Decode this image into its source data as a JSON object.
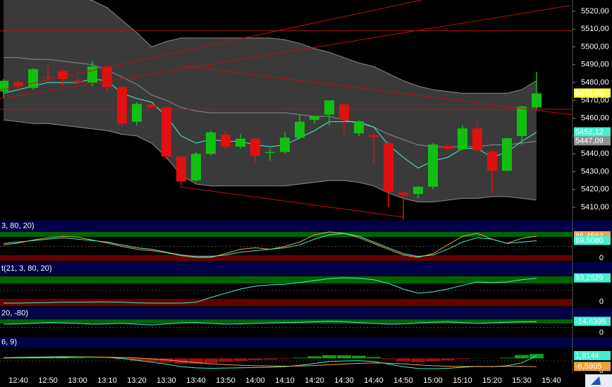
{
  "chart_data": [
    {
      "type": "candlestick",
      "xtick_labels": [
        "12:40",
        "12:50",
        "13:00",
        "13:10",
        "13:20",
        "13:30",
        "13:40",
        "13:50",
        "14:00",
        "14:10",
        "14:20",
        "14:30",
        "14:40",
        "14:50",
        "15:00",
        "15:10",
        "15:20",
        "15:30",
        "15:40"
      ],
      "open": [
        5475,
        5480,
        5477,
        5483,
        5486.5,
        5481,
        5480,
        5489,
        5477.5,
        5458,
        5467.5,
        5466,
        5438.5,
        5425,
        5440,
        5450.75,
        5444,
        5448.5,
        5440.5,
        5441,
        5449,
        5459,
        5462,
        5467.75,
        5451.5,
        5450.5,
        5446,
        5418.25,
        5417.5,
        5421.5,
        5444.5,
        5442.5,
        5454.25,
        5441.25,
        5430.5,
        5450,
        5466
      ],
      "high": [
        5482,
        5481,
        5488,
        5490,
        5488,
        5483,
        5492,
        5490,
        5478,
        5469,
        5468,
        5467,
        5439,
        5441,
        5453,
        5453,
        5451,
        5449,
        5443,
        5452,
        5462,
        5461,
        5470,
        5468,
        5459,
        5452,
        5447,
        5419,
        5422,
        5446,
        5446,
        5456,
        5458,
        5442,
        5449,
        5467,
        5486
      ],
      "low": [
        5471,
        5476,
        5476,
        5481,
        5478,
        5479,
        5478,
        5475,
        5455,
        5456,
        5466,
        5437,
        5422,
        5424,
        5439,
        5443,
        5443,
        5435,
        5436,
        5440,
        5448,
        5457,
        5456,
        5451,
        5450,
        5434,
        5410,
        5403,
        5415,
        5420,
        5442,
        5442,
        5441,
        5418,
        5430,
        5445,
        5465
      ],
      "close": [
        5481,
        5478,
        5487.5,
        5482.5,
        5482,
        5480,
        5489,
        5477.5,
        5457,
        5468,
        5466.25,
        5438.5,
        5424.5,
        5440,
        5452,
        5444,
        5448.5,
        5439,
        5441,
        5449,
        5458,
        5461,
        5470,
        5459,
        5458.25,
        5449.5,
        5418.75,
        5416.75,
        5421.5,
        5445.25,
        5442.75,
        5454.25,
        5442,
        5430.5,
        5448.75,
        5466.5,
        5473.9
      ],
      "up_color": "#10c010",
      "down_color": "#e01010",
      "bands": {
        "color": "#3a3a3a",
        "edge_color": "#8a8a8a",
        "upper": [
          5530,
          5530,
          5530,
          5530,
          5529,
          5528,
          5526,
          5522,
          5515,
          5508,
          5500,
          5503,
          5505,
          5505,
          5505,
          5505,
          5505,
          5505,
          5505,
          5504,
          5502,
          5499,
          5497,
          5494,
          5491,
          5489,
          5485,
          5481,
          5478,
          5476,
          5475,
          5474,
          5474,
          5474,
          5474,
          5476,
          5481
        ],
        "middle": [
          5494,
          5494,
          5493,
          5493,
          5492,
          5491,
          5490,
          5487,
          5483,
          5479,
          5473,
          5470,
          5466,
          5464,
          5463,
          5463,
          5463,
          5463,
          5463,
          5463,
          5462,
          5461,
          5461,
          5459,
          5457,
          5455,
          5451,
          5448,
          5445,
          5444,
          5444,
          5444,
          5444,
          5445,
          5445,
          5446,
          5447.09
        ],
        "lower": [
          5459,
          5458,
          5457,
          5457,
          5456,
          5455,
          5454,
          5453,
          5451,
          5450,
          5446,
          5438,
          5428,
          5423,
          5422,
          5422,
          5422,
          5422,
          5422,
          5422,
          5423,
          5424,
          5425,
          5425,
          5424,
          5422,
          5418,
          5415,
          5413,
          5413,
          5414,
          5415,
          5415,
          5416,
          5416,
          5415,
          5414
        ]
      },
      "ema": {
        "color": "#40f0d0",
        "values": [
          5474,
          5476,
          5478,
          5480,
          5480,
          5480,
          5482,
          5481,
          5474,
          5471,
          5469,
          5461,
          5450,
          5446,
          5448,
          5447,
          5447,
          5445,
          5444,
          5445,
          5449,
          5453,
          5458,
          5458,
          5458,
          5455,
          5445,
          5438,
          5432,
          5436,
          5438,
          5443,
          5443,
          5438,
          5441,
          5447,
          5452.12
        ]
      },
      "hlines": [
        5509,
        5465
      ],
      "hline_color": "#c01010",
      "ylim": [
        5402.9,
        5526.3
      ],
      "yticks": [
        {
          "value": 5410,
          "label": "5410,00"
        },
        {
          "value": 5420,
          "label": "5420,00"
        },
        {
          "value": 5430,
          "label": "5430,00"
        },
        {
          "value": 5440,
          "label": "5440,00"
        },
        {
          "value": 5450,
          "label": "5450,00"
        },
        {
          "value": 5460,
          "label": "5460,00"
        },
        {
          "value": 5470,
          "label": "5470,00"
        },
        {
          "value": 5480,
          "label": "5480,00"
        },
        {
          "value": 5490,
          "label": "5490,00"
        },
        {
          "value": 5500,
          "label": "5500,00"
        },
        {
          "value": 5510,
          "label": "5510,00"
        },
        {
          "value": 5520,
          "label": "5520,00"
        }
      ],
      "value_labels": [
        {
          "value": 5473.9,
          "label": "5473,90",
          "color": "#ffff40",
          "text_color": "#d00000"
        },
        {
          "value": 5452.12,
          "label": "5452,12",
          "color": "#40f0d0",
          "text_color": "#000000"
        },
        {
          "value": 5447.09,
          "label": "5447,09",
          "color": "#909090",
          "text_color": "#000000"
        }
      ]
    },
    {
      "type": "line",
      "title": "3, 80, 20)",
      "ylim": [
        0,
        100
      ],
      "yticks": [
        0
      ],
      "series": [
        {
          "color": "#f0a040",
          "values": [
            55,
            62,
            72,
            80,
            85,
            82,
            72,
            62,
            50,
            40,
            35,
            28,
            18,
            12,
            12,
            25,
            40,
            45,
            40,
            50,
            65,
            90,
            100,
            95,
            80,
            60,
            40,
            20,
            12,
            25,
            55,
            85,
            95,
            75,
            60,
            78,
            85.4563
          ]
        },
        {
          "color": "#40f0d0",
          "values": [
            60,
            65,
            70,
            75,
            80,
            75,
            70,
            65,
            55,
            45,
            40,
            30,
            20,
            15,
            15,
            20,
            30,
            35,
            40,
            45,
            55,
            75,
            90,
            95,
            85,
            65,
            45,
            25,
            15,
            20,
            40,
            65,
            80,
            75,
            60,
            65,
            69.508
          ]
        }
      ],
      "value_labels": [
        {
          "value": 85.4563,
          "label": "85,4563",
          "color": "#f0a040",
          "text_color": "#000000"
        },
        {
          "value": 69.508,
          "label": "69,5080",
          "color": "#40f0d0",
          "text_color": "#000000"
        }
      ]
    },
    {
      "type": "line",
      "title": "t(21, 3, 80, 20)",
      "ylim": [
        0,
        100
      ],
      "yticks": [
        0
      ],
      "series": [
        {
          "color": "#40f0d0",
          "values": [
            5,
            5,
            6,
            7,
            8,
            8,
            9,
            9,
            8,
            6,
            5,
            5,
            5,
            8,
            25,
            40,
            55,
            65,
            70,
            72,
            78,
            85,
            92,
            95,
            93,
            88,
            75,
            55,
            40,
            45,
            55,
            68,
            80,
            78,
            80,
            88,
            93.2529
          ]
        }
      ],
      "value_labels": [
        {
          "value": 93.2529,
          "label": "93,2529",
          "color": "#40f0d0",
          "text_color": "#000000"
        }
      ]
    },
    {
      "type": "line",
      "title": "20, -80)",
      "ylim": [
        -100,
        0
      ],
      "yticks": [
        0
      ],
      "series": [
        {
          "color": "#40f0d0",
          "values": [
            -30,
            -28,
            -25,
            -20,
            -22,
            -25,
            -30,
            -28,
            -25,
            -30,
            -35,
            -28,
            -22,
            -20,
            -25,
            -30,
            -28,
            -25,
            -22,
            -20,
            -18,
            -15,
            -12,
            -15,
            -20,
            -25,
            -30,
            -28,
            -22,
            -18,
            -15,
            -20,
            -25,
            -22,
            -18,
            -15,
            -14.6395
          ]
        }
      ],
      "value_labels": [
        {
          "value": -14.6395,
          "label": "-14,6395",
          "color": "#40f0d0",
          "text_color": "#000000"
        }
      ]
    },
    {
      "type": "macd",
      "title": "6, 9)",
      "ylim": [
        -12,
        8
      ],
      "yticks": [
        0
      ],
      "histogram": {
        "up_color": "#10a010",
        "down_color": "#a01010",
        "values": [
          0.2,
          0.4,
          0.5,
          0.5,
          0.5,
          0.3,
          0.1,
          -0.1,
          -0.7,
          -1.8,
          -2.6,
          -3.3,
          -4.2,
          -4.2,
          -3.6,
          -2.7,
          -2,
          -1.4,
          -1,
          -0.4,
          0.5,
          1.6,
          2.5,
          2.4,
          2.1,
          1.1,
          -0.7,
          -2.2,
          -2.9,
          -2.4,
          -1.6,
          -0.6,
          0.1,
          -0.1,
          0.5,
          2.7,
          3.5
        ]
      },
      "series": [
        {
          "color": "#40f0d0",
          "values": [
            0.5,
            0.8,
            1,
            1.2,
            1.3,
            1.2,
            1.1,
            0.8,
            0,
            -1.5,
            -3,
            -4.5,
            -6.5,
            -7.5,
            -7.8,
            -7.6,
            -7.4,
            -7.2,
            -7,
            -6.5,
            -5.5,
            -4,
            -2.5,
            -2,
            -1.8,
            -2.5,
            -4.5,
            -6.5,
            -8,
            -8.2,
            -7.8,
            -7,
            -6.3,
            -6.5,
            -5.8,
            -3.5,
            1.9144
          ]
        },
        {
          "color": "#f0a040",
          "values": [
            0.3,
            0.4,
            0.5,
            0.7,
            0.8,
            0.9,
            1,
            0.9,
            0.7,
            0.3,
            -0.4,
            -1.2,
            -2.3,
            -3.3,
            -4.2,
            -4.9,
            -5.4,
            -5.8,
            -6,
            -6.1,
            -6,
            -5.6,
            -5,
            -4.4,
            -3.9,
            -3.6,
            -3.8,
            -4.3,
            -5.1,
            -5.8,
            -6.2,
            -6.4,
            -6.4,
            -6.4,
            -6.3,
            -6.2,
            -6.5905
          ]
        }
      ],
      "value_labels": [
        {
          "value": 1.9144,
          "label": "1,9144",
          "color": "#40f0d0",
          "text_color": "#000000"
        },
        {
          "value": -6.5905,
          "label": "-6,5905",
          "color": "#f0a040",
          "text_color": "#000000"
        }
      ]
    }
  ]
}
